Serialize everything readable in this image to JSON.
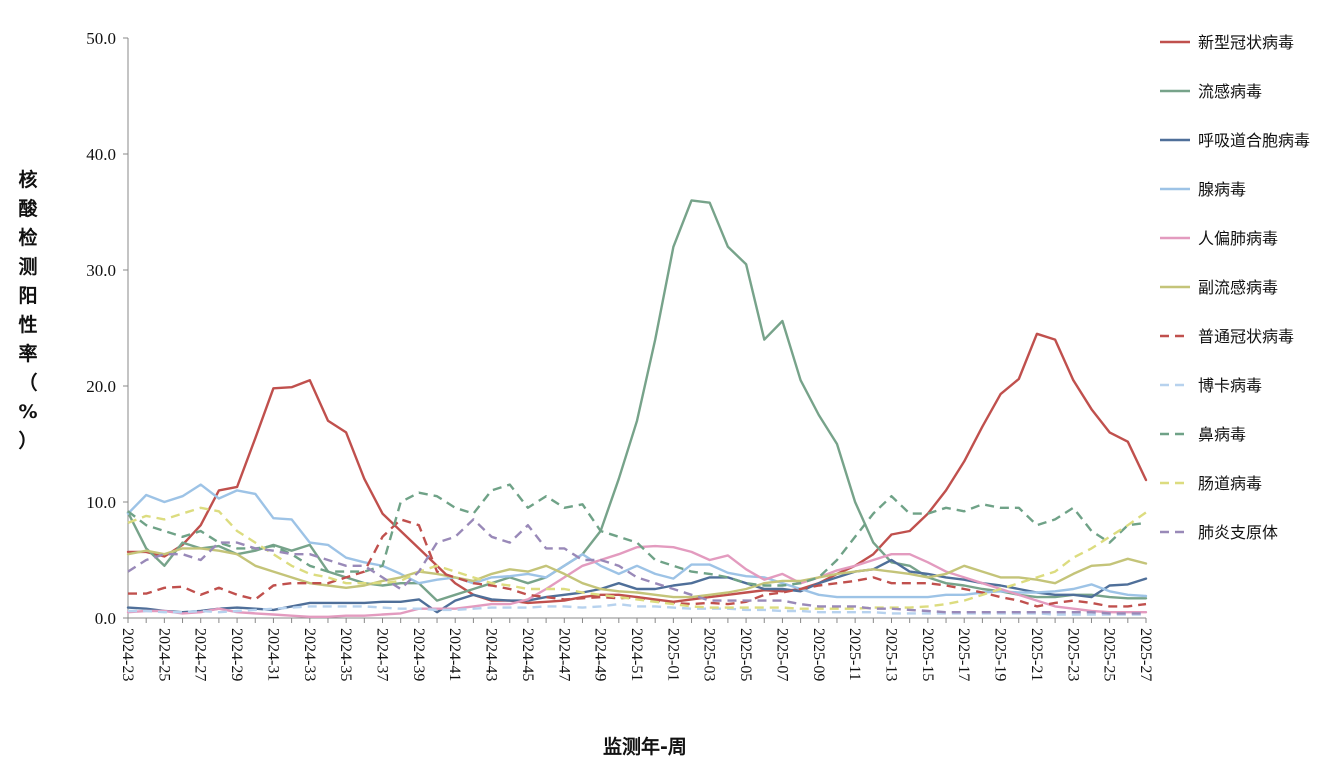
{
  "chart_data": {
    "type": "line",
    "title": "",
    "xlabel": "监测年-周",
    "ylabel": "核酸检测阳性率（%）",
    "ylim": [
      0,
      50
    ],
    "yticks": [
      "0.0",
      "10.0",
      "20.0",
      "30.0",
      "40.0",
      "50.0"
    ],
    "grid": false,
    "legend_position": "right",
    "x_tick_labels": [
      "2024-23",
      "2024-25",
      "2024-27",
      "2024-29",
      "2024-31",
      "2024-33",
      "2024-35",
      "2024-37",
      "2024-39",
      "2024-41",
      "2024-43",
      "2024-45",
      "2024-47",
      "2024-49",
      "2024-51",
      "2025-01",
      "2025-03",
      "2025-05",
      "2025-07",
      "2025-09",
      "2025-11",
      "2025-13",
      "2025-15",
      "2025-17",
      "2025-19",
      "2025-21",
      "2025-23",
      "2025-25",
      "2025-27"
    ],
    "categories": [
      "2024-23",
      "2024-24",
      "2024-25",
      "2024-26",
      "2024-27",
      "2024-28",
      "2024-29",
      "2024-30",
      "2024-31",
      "2024-32",
      "2024-33",
      "2024-34",
      "2024-35",
      "2024-36",
      "2024-37",
      "2024-38",
      "2024-39",
      "2024-40",
      "2024-41",
      "2024-42",
      "2024-43",
      "2024-44",
      "2024-45",
      "2024-46",
      "2024-47",
      "2024-48",
      "2024-49",
      "2024-50",
      "2024-51",
      "2024-52",
      "2025-01",
      "2025-02",
      "2025-03",
      "2025-04",
      "2025-05",
      "2025-06",
      "2025-07",
      "2025-08",
      "2025-09",
      "2025-10",
      "2025-11",
      "2025-12",
      "2025-13",
      "2025-14",
      "2025-15",
      "2025-16",
      "2025-17",
      "2025-18",
      "2025-19",
      "2025-20",
      "2025-21",
      "2025-22",
      "2025-23",
      "2025-24",
      "2025-25",
      "2025-26",
      "2025-27"
    ],
    "series": [
      {
        "name": "新型冠状病毒",
        "color": "#c0504d",
        "dash": false,
        "values": [
          5.7,
          5.7,
          5.3,
          6.3,
          8.0,
          11.0,
          11.3,
          15.5,
          19.8,
          19.9,
          20.5,
          17.0,
          16.0,
          12.0,
          9.0,
          7.5,
          6.0,
          4.5,
          3.0,
          2.0,
          1.5,
          1.5,
          1.3,
          1.4,
          1.5,
          1.8,
          2.0,
          2.0,
          1.8,
          1.6,
          1.4,
          1.6,
          1.8,
          2.0,
          2.2,
          2.4,
          2.3,
          2.5,
          3.0,
          3.8,
          4.5,
          5.5,
          7.2,
          7.5,
          9.0,
          11.0,
          13.5,
          16.5,
          19.3,
          20.6,
          24.5,
          24.0,
          20.5,
          18.0,
          16.0,
          15.2,
          11.9
        ]
      },
      {
        "name": "流感病毒",
        "color": "#77a38a",
        "dash": false,
        "values": [
          9.1,
          6.0,
          4.5,
          6.5,
          6.0,
          6.2,
          5.5,
          5.8,
          6.3,
          5.8,
          6.3,
          4.0,
          3.5,
          3.0,
          2.8,
          3.0,
          3.0,
          1.5,
          2.0,
          2.5,
          3.0,
          3.5,
          3.0,
          3.5,
          4.5,
          5.5,
          7.5,
          12.0,
          17.0,
          24.0,
          32.0,
          36.0,
          35.8,
          32.0,
          30.5,
          24.0,
          25.6,
          20.5,
          17.5,
          15.0,
          10.0,
          6.5,
          4.8,
          4.5,
          3.5,
          3.0,
          2.8,
          2.5,
          2.3,
          2.0,
          1.8,
          1.8,
          2.0,
          2.0,
          1.8,
          1.7,
          1.7
        ]
      },
      {
        "name": "呼吸道合胞病毒",
        "color": "#4f6f99",
        "dash": false,
        "values": [
          0.9,
          0.8,
          0.6,
          0.5,
          0.6,
          0.8,
          0.9,
          0.8,
          0.7,
          1.0,
          1.3,
          1.3,
          1.3,
          1.3,
          1.4,
          1.4,
          1.6,
          0.5,
          1.5,
          2.0,
          1.6,
          1.5,
          1.5,
          1.8,
          2.0,
          2.2,
          2.5,
          3.0,
          2.5,
          2.5,
          2.8,
          3.0,
          3.5,
          3.5,
          3.0,
          2.5,
          2.5,
          2.3,
          3.0,
          3.5,
          4.0,
          4.2,
          5.0,
          4.0,
          3.8,
          3.5,
          3.3,
          3.0,
          2.8,
          2.5,
          2.2,
          2.0,
          2.0,
          1.8,
          2.8,
          2.9,
          3.4
        ]
      },
      {
        "name": "腺病毒",
        "color": "#9dc3e6",
        "dash": false,
        "values": [
          9.0,
          10.6,
          10.0,
          10.5,
          11.5,
          10.3,
          11.0,
          10.7,
          8.6,
          8.5,
          6.5,
          6.3,
          5.2,
          4.8,
          4.5,
          3.8,
          3.0,
          3.3,
          3.5,
          3.0,
          3.5,
          3.6,
          3.8,
          3.5,
          4.5,
          5.5,
          4.5,
          3.8,
          4.5,
          3.8,
          3.4,
          4.6,
          4.6,
          3.9,
          3.6,
          3.5,
          3.0,
          2.5,
          2.0,
          1.8,
          1.8,
          1.8,
          1.8,
          1.8,
          1.8,
          2.0,
          2.0,
          2.2,
          2.3,
          2.2,
          2.2,
          2.3,
          2.5,
          2.9,
          2.3,
          2.0,
          1.9
        ]
      },
      {
        "name": "人偏肺病毒",
        "color": "#e39bbf",
        "dash": false,
        "values": [
          0.5,
          0.6,
          0.6,
          0.4,
          0.5,
          0.8,
          0.5,
          0.4,
          0.3,
          0.2,
          0.1,
          0.1,
          0.2,
          0.2,
          0.3,
          0.4,
          0.8,
          0.8,
          0.8,
          1.0,
          1.2,
          1.2,
          1.6,
          2.5,
          3.5,
          4.5,
          5.0,
          5.5,
          6.1,
          6.2,
          6.1,
          5.7,
          5.0,
          5.4,
          4.2,
          3.3,
          3.8,
          3.0,
          3.5,
          4.1,
          4.5,
          5.0,
          5.5,
          5.5,
          4.8,
          4.0,
          3.5,
          3.0,
          2.5,
          2.0,
          1.5,
          1.0,
          0.8,
          0.6,
          0.5,
          0.5,
          0.5
        ]
      },
      {
        "name": "副流感病毒",
        "color": "#c4c479",
        "dash": false,
        "values": [
          5.5,
          5.8,
          5.5,
          6.0,
          6.0,
          5.8,
          5.5,
          4.5,
          4.0,
          3.5,
          3.0,
          2.8,
          2.6,
          2.8,
          3.2,
          3.5,
          4.0,
          3.8,
          3.5,
          3.2,
          3.8,
          4.2,
          4.0,
          4.5,
          3.8,
          3.0,
          2.5,
          2.3,
          2.2,
          2.0,
          1.8,
          1.8,
          2.0,
          2.2,
          2.5,
          3.0,
          3.2,
          3.2,
          3.5,
          3.8,
          4.0,
          4.2,
          4.0,
          3.8,
          3.5,
          3.8,
          4.5,
          4.0,
          3.5,
          3.5,
          3.3,
          3.0,
          3.8,
          4.5,
          4.6,
          5.1,
          4.7
        ]
      },
      {
        "name": "普通冠状病毒",
        "color": "#c0504d",
        "dash": true,
        "values": [
          2.1,
          2.1,
          2.6,
          2.7,
          2.0,
          2.6,
          2.0,
          1.6,
          2.8,
          3.0,
          3.0,
          3.0,
          3.5,
          4.0,
          7.0,
          8.5,
          8.0,
          4.0,
          3.5,
          3.0,
          2.8,
          2.5,
          2.0,
          1.8,
          1.6,
          1.7,
          1.8,
          1.7,
          1.8,
          1.5,
          1.3,
          1.2,
          1.3,
          1.2,
          1.4,
          2.0,
          2.2,
          2.5,
          2.8,
          3.0,
          3.2,
          3.5,
          3.0,
          3.0,
          3.0,
          2.8,
          2.5,
          2.2,
          1.8,
          1.5,
          1.0,
          1.3,
          1.5,
          1.3,
          1.0,
          1.0,
          1.2
        ]
      },
      {
        "name": "博卡病毒",
        "color": "#b7d2ee",
        "dash": true,
        "values": [
          0.6,
          0.6,
          0.5,
          0.5,
          0.6,
          0.5,
          0.6,
          0.7,
          0.8,
          0.9,
          1.0,
          1.0,
          1.0,
          1.0,
          0.9,
          0.8,
          0.8,
          0.7,
          0.7,
          0.8,
          0.9,
          0.9,
          0.9,
          1.0,
          1.0,
          0.9,
          1.0,
          1.2,
          1.0,
          1.0,
          0.9,
          0.8,
          0.8,
          0.8,
          0.7,
          0.7,
          0.6,
          0.6,
          0.5,
          0.5,
          0.5,
          0.5,
          0.4,
          0.4,
          0.4,
          0.4,
          0.4,
          0.4,
          0.4,
          0.4,
          0.4,
          0.3,
          0.3,
          0.3,
          0.3,
          0.3,
          0.3
        ]
      },
      {
        "name": "鼻病毒",
        "color": "#6fa287",
        "dash": true,
        "values": [
          9.2,
          8.0,
          7.5,
          7.0,
          7.5,
          6.5,
          6.0,
          6.0,
          6.2,
          5.5,
          4.5,
          4.0,
          4.0,
          4.0,
          4.5,
          10.0,
          10.8,
          10.5,
          9.5,
          9.0,
          11.0,
          11.5,
          9.5,
          10.5,
          9.5,
          9.8,
          7.5,
          7.0,
          6.5,
          5.0,
          4.5,
          4.0,
          3.8,
          3.5,
          3.0,
          2.8,
          2.8,
          3.0,
          3.5,
          5.0,
          7.0,
          9.0,
          10.5,
          9.0,
          9.0,
          9.5,
          9.2,
          9.8,
          9.5,
          9.5,
          8.0,
          8.5,
          9.5,
          7.5,
          6.5,
          8.0,
          8.2
        ]
      },
      {
        "name": "肠道病毒",
        "color": "#dcdc7f",
        "dash": true,
        "values": [
          8.2,
          8.8,
          8.5,
          9.0,
          9.5,
          9.2,
          7.5,
          6.5,
          5.5,
          4.5,
          3.8,
          3.5,
          3.0,
          3.0,
          3.0,
          3.2,
          4.0,
          4.5,
          4.0,
          3.5,
          3.0,
          2.8,
          2.5,
          2.5,
          2.5,
          2.2,
          2.0,
          1.8,
          1.6,
          1.4,
          1.2,
          1.0,
          0.9,
          0.9,
          0.9,
          0.9,
          0.9,
          0.8,
          0.8,
          0.8,
          0.8,
          0.9,
          0.9,
          0.9,
          1.0,
          1.2,
          1.5,
          2.0,
          2.5,
          3.0,
          3.5,
          4.0,
          5.2,
          6.0,
          7.0,
          8.0,
          9.1
        ]
      },
      {
        "name": "肺炎支原体",
        "color": "#9989b8",
        "dash": true,
        "values": [
          4.0,
          5.0,
          5.5,
          5.5,
          5.0,
          6.5,
          6.5,
          6.0,
          5.8,
          5.5,
          5.5,
          5.0,
          4.5,
          4.5,
          3.5,
          2.5,
          4.0,
          6.5,
          7.0,
          8.5,
          7.0,
          6.5,
          8.0,
          6.0,
          6.0,
          5.0,
          5.0,
          4.5,
          3.5,
          3.0,
          2.5,
          2.0,
          1.5,
          1.5,
          1.5,
          1.5,
          1.5,
          1.2,
          1.0,
          1.0,
          1.0,
          0.8,
          0.8,
          0.7,
          0.6,
          0.5,
          0.5,
          0.5,
          0.5,
          0.5,
          0.5,
          0.5,
          0.5,
          0.5,
          0.4,
          0.4,
          0.4
        ]
      }
    ]
  }
}
